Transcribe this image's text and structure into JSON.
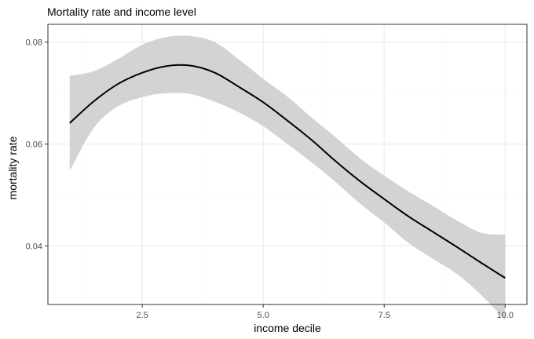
{
  "chart_data": {
    "type": "line",
    "title": "Mortality rate and income level",
    "xlabel": "income decile",
    "ylabel": "mortality rate",
    "xlim": [
      0.55,
      10.45
    ],
    "ylim": [
      0.0285,
      0.0835
    ],
    "x_ticks": [
      2.5,
      5.0,
      7.5,
      10.0
    ],
    "x_tick_labels": [
      "2.5",
      "5.0",
      "7.5",
      "10.0"
    ],
    "y_ticks": [
      0.04,
      0.06,
      0.08
    ],
    "y_tick_labels": [
      "0.04",
      "0.06",
      "0.08"
    ],
    "grid": true,
    "series": [
      {
        "x": [
          1.0,
          1.5,
          2.0,
          2.5,
          3.0,
          3.5,
          4.0,
          4.5,
          5.0,
          5.5,
          6.0,
          6.5,
          7.0,
          7.5,
          8.0,
          8.5,
          9.0,
          9.5,
          10.0
        ],
        "y": [
          0.0641,
          0.0684,
          0.0718,
          0.074,
          0.0753,
          0.0754,
          0.074,
          0.0712,
          0.0682,
          0.0646,
          0.0608,
          0.0566,
          0.0527,
          0.0492,
          0.0458,
          0.0428,
          0.0398,
          0.0367,
          0.0337
        ],
        "lower": [
          0.0547,
          0.0632,
          0.0674,
          0.0692,
          0.07,
          0.0698,
          0.0683,
          0.0662,
          0.0635,
          0.06,
          0.0564,
          0.0525,
          0.0483,
          0.0446,
          0.0406,
          0.0375,
          0.0345,
          0.0304,
          0.0255
        ],
        "upper": [
          0.0734,
          0.0743,
          0.0767,
          0.0795,
          0.081,
          0.0812,
          0.08,
          0.0766,
          0.0728,
          0.0693,
          0.0652,
          0.0613,
          0.0572,
          0.0538,
          0.0507,
          0.0479,
          0.045,
          0.0426,
          0.0422
        ],
        "line_color": "#000000",
        "band_color": "#d3d3d3"
      }
    ]
  },
  "colors": {
    "background": "#ffffff",
    "panel_border": "#333333",
    "grid_major": "#ebebeb",
    "grid_minor": "#f5f5f5"
  }
}
